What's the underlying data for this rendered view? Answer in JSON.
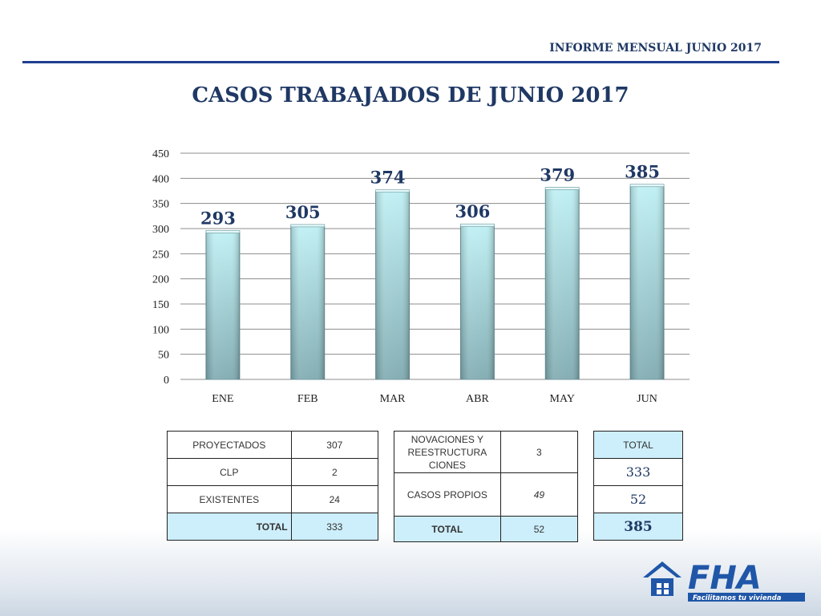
{
  "header": {
    "report_title": "INFORME MENSUAL JUNIO 2017"
  },
  "title": "CASOS TRABAJADOS DE JUNIO 2017",
  "colors": {
    "bar_top": "#bdeff3",
    "bar_bottom": "#7eaab0",
    "title": "#1f3864",
    "rule": "#1f3f8f"
  },
  "chart_data": {
    "type": "bar",
    "title": "CASOS TRABAJADOS DE JUNIO 2017",
    "categories": [
      "ENE",
      "FEB",
      "MAR",
      "ABR",
      "MAY",
      "JUN"
    ],
    "values": [
      293,
      305,
      374,
      306,
      379,
      385
    ],
    "ylim": [
      0,
      450
    ],
    "yticks": [
      0,
      50,
      100,
      150,
      200,
      250,
      300,
      350,
      400,
      450
    ],
    "grid": true,
    "data_labels": true
  },
  "table1": {
    "rows": [
      {
        "label": "PROYECTADOS",
        "value": "307"
      },
      {
        "label": "CLP",
        "value": "2"
      },
      {
        "label": "EXISTENTES",
        "value": "24"
      }
    ],
    "total_label": "TOTAL",
    "total_value": "333"
  },
  "table2": {
    "rows": [
      {
        "label": "NOVACIONES Y REESTRUCTURA CIONES",
        "value": "3"
      },
      {
        "label": "CASOS PROPIOS",
        "value": "49"
      }
    ],
    "total_label": "TOTAL",
    "total_value": "52"
  },
  "table3": {
    "header": "TOTAL",
    "values": [
      "333",
      "52"
    ],
    "grand_total": "385"
  },
  "logo": {
    "text": "FHA",
    "tagline": "Facilitamos tu vivienda",
    "icon": "house-icon"
  }
}
